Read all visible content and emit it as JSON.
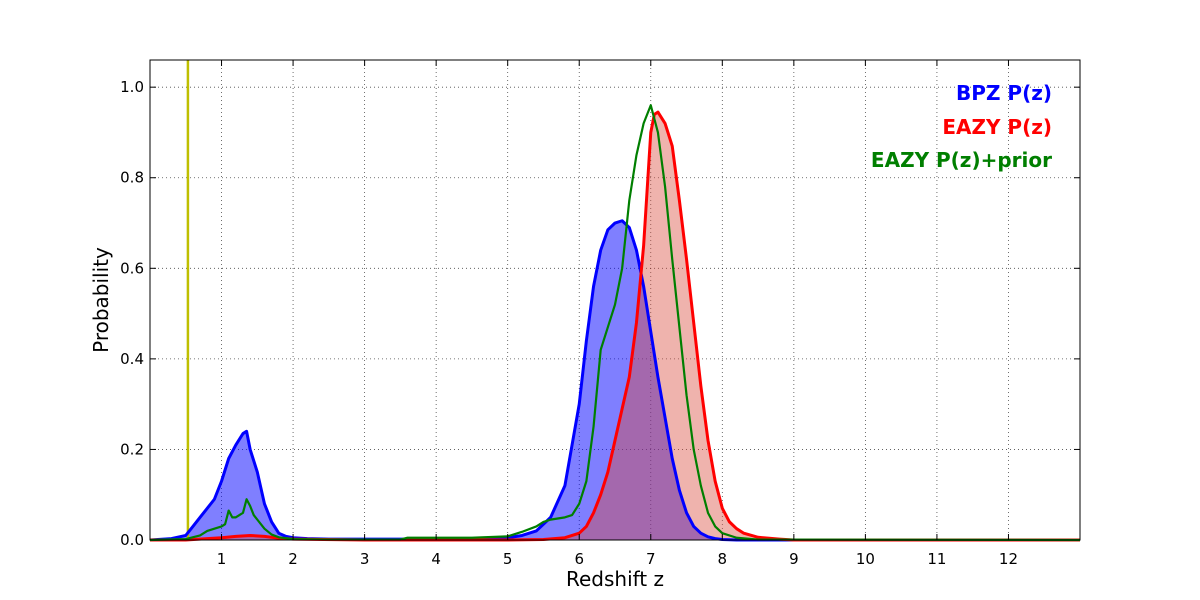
{
  "chart_data": {
    "type": "area",
    "title": "",
    "xlabel": "Redshift z",
    "ylabel": "Probability",
    "xlim": [
      0,
      13
    ],
    "ylim": [
      0,
      1.06
    ],
    "xticks": [
      1,
      2,
      3,
      4,
      5,
      6,
      7,
      8,
      9,
      10,
      11,
      12
    ],
    "yticks": [
      0.0,
      0.2,
      0.4,
      0.6,
      0.8,
      1.0
    ],
    "grid": true,
    "legend_position": "top-right",
    "vline": {
      "x": 0.53,
      "color": "#bfbf00"
    },
    "series": [
      {
        "name": "BPZ P(z)",
        "color": "#0000ff",
        "fill": "#0000ff",
        "fill_opacity": 0.5,
        "x": [
          0.0,
          0.3,
          0.5,
          0.6,
          0.7,
          0.8,
          0.9,
          1.0,
          1.1,
          1.2,
          1.3,
          1.35,
          1.4,
          1.5,
          1.6,
          1.7,
          1.8,
          1.9,
          2.0,
          2.2,
          2.5,
          3.0,
          3.5,
          4.0,
          4.5,
          5.0,
          5.2,
          5.4,
          5.6,
          5.8,
          6.0,
          6.1,
          6.2,
          6.3,
          6.4,
          6.5,
          6.6,
          6.7,
          6.8,
          6.9,
          7.0,
          7.1,
          7.2,
          7.3,
          7.4,
          7.5,
          7.6,
          7.7,
          7.8,
          7.9,
          8.0,
          8.2,
          8.5,
          9.0,
          13.0
        ],
        "y": [
          0.0,
          0.003,
          0.01,
          0.03,
          0.05,
          0.07,
          0.09,
          0.13,
          0.18,
          0.21,
          0.235,
          0.24,
          0.2,
          0.15,
          0.08,
          0.04,
          0.015,
          0.008,
          0.005,
          0.003,
          0.002,
          0.002,
          0.002,
          0.002,
          0.003,
          0.005,
          0.01,
          0.02,
          0.05,
          0.12,
          0.3,
          0.44,
          0.56,
          0.64,
          0.685,
          0.7,
          0.705,
          0.69,
          0.64,
          0.56,
          0.46,
          0.36,
          0.27,
          0.18,
          0.11,
          0.06,
          0.03,
          0.015,
          0.007,
          0.003,
          0.001,
          0.0,
          0.0,
          0.0,
          0.0
        ]
      },
      {
        "name": "EAZY P(z)",
        "color": "#ff0000",
        "fill": "#d94a3b",
        "fill_opacity": 0.42,
        "x": [
          0.0,
          0.5,
          0.8,
          1.0,
          1.2,
          1.4,
          1.6,
          1.8,
          2.0,
          3.0,
          4.0,
          5.0,
          5.5,
          5.8,
          6.0,
          6.1,
          6.2,
          6.3,
          6.4,
          6.5,
          6.6,
          6.7,
          6.8,
          6.9,
          7.0,
          7.05,
          7.1,
          7.2,
          7.3,
          7.4,
          7.5,
          7.6,
          7.7,
          7.8,
          7.9,
          8.0,
          8.1,
          8.2,
          8.3,
          8.5,
          8.8,
          9.0,
          13.0
        ],
        "y": [
          0.0,
          0.0,
          0.003,
          0.005,
          0.008,
          0.01,
          0.008,
          0.004,
          0.002,
          0.0,
          0.0,
          0.0,
          0.001,
          0.005,
          0.015,
          0.03,
          0.06,
          0.1,
          0.15,
          0.22,
          0.29,
          0.36,
          0.48,
          0.65,
          0.9,
          0.94,
          0.945,
          0.92,
          0.87,
          0.75,
          0.62,
          0.48,
          0.34,
          0.22,
          0.13,
          0.07,
          0.04,
          0.025,
          0.015,
          0.006,
          0.002,
          0.0,
          0.0
        ]
      },
      {
        "name": "EAZY P(z)+prior",
        "color": "#007f00",
        "fill": "none",
        "fill_opacity": 0,
        "x": [
          0.0,
          0.5,
          0.7,
          0.8,
          0.9,
          1.0,
          1.05,
          1.1,
          1.15,
          1.2,
          1.3,
          1.35,
          1.4,
          1.45,
          1.5,
          1.6,
          1.7,
          1.8,
          2.0,
          2.5,
          3.0,
          3.5,
          3.6,
          4.0,
          4.5,
          5.0,
          5.2,
          5.4,
          5.5,
          5.6,
          5.8,
          5.9,
          6.0,
          6.1,
          6.2,
          6.3,
          6.4,
          6.5,
          6.6,
          6.7,
          6.8,
          6.9,
          7.0,
          7.1,
          7.2,
          7.3,
          7.4,
          7.5,
          7.6,
          7.7,
          7.8,
          7.9,
          8.0,
          8.2,
          8.5,
          13.0
        ],
        "y": [
          0.0,
          0.002,
          0.01,
          0.02,
          0.025,
          0.03,
          0.035,
          0.065,
          0.05,
          0.05,
          0.06,
          0.09,
          0.075,
          0.055,
          0.045,
          0.025,
          0.012,
          0.006,
          0.002,
          0.001,
          0.001,
          0.001,
          0.005,
          0.005,
          0.005,
          0.008,
          0.018,
          0.03,
          0.04,
          0.045,
          0.05,
          0.055,
          0.08,
          0.13,
          0.25,
          0.42,
          0.47,
          0.52,
          0.6,
          0.75,
          0.85,
          0.92,
          0.96,
          0.9,
          0.78,
          0.62,
          0.47,
          0.32,
          0.2,
          0.12,
          0.06,
          0.03,
          0.015,
          0.005,
          0.001,
          0.0
        ]
      }
    ]
  }
}
